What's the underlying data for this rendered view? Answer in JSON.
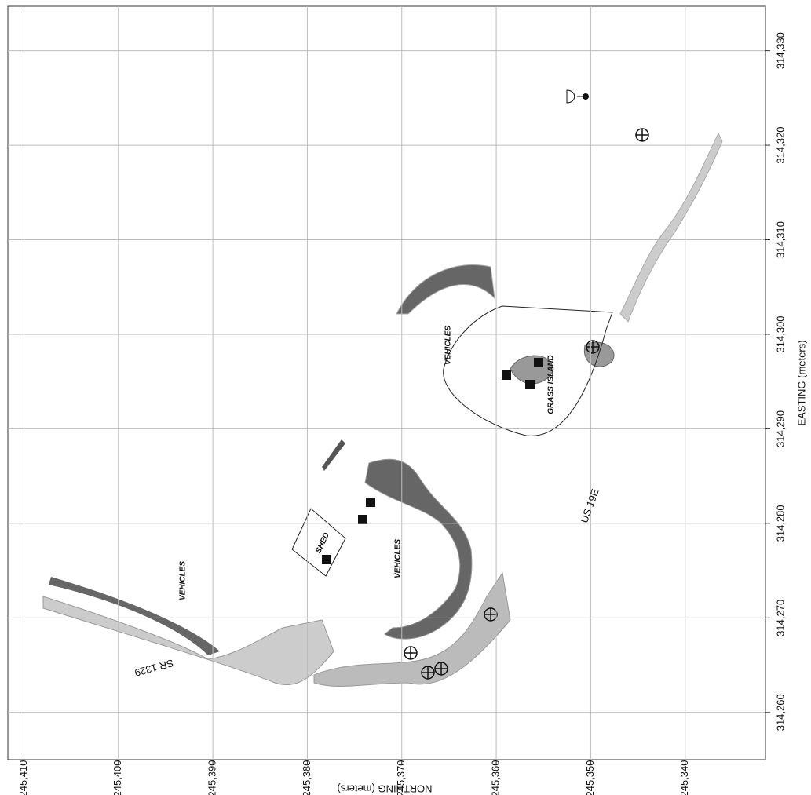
{
  "chart_data": {
    "type": "map",
    "xlabel": "NORTHING (meters)",
    "ylabel": "EASTING (meters)",
    "xlim": [
      245411.7,
      245331.5
    ],
    "ylim": [
      314255,
      314334.7
    ],
    "xticks": [
      {
        "value": 245410,
        "label": "245,410"
      },
      {
        "value": 245400,
        "label": "245,400"
      },
      {
        "value": 245390,
        "label": "245,390"
      },
      {
        "value": 245380,
        "label": "245,380"
      },
      {
        "value": 245370,
        "label": "245,370"
      },
      {
        "value": 245360,
        "label": "245,360"
      },
      {
        "value": 245350,
        "label": "245,350"
      },
      {
        "value": 245340,
        "label": "245,340"
      }
    ],
    "yticks": [
      {
        "value": 314260,
        "label": "314,260"
      },
      {
        "value": 314270,
        "label": "314,270"
      },
      {
        "value": 314280,
        "label": "314,280"
      },
      {
        "value": 314290,
        "label": "314,290"
      },
      {
        "value": 314300,
        "label": "314,300"
      },
      {
        "value": 314310,
        "label": "314,310"
      },
      {
        "value": 314320,
        "label": "314,320"
      },
      {
        "value": 314330,
        "label": "314,330"
      }
    ],
    "grid": true,
    "annotations": [
      "VEHICLES",
      "VEHICLES",
      "VEHICLES",
      "SHED",
      "GRASS ISLAND",
      "US 19E",
      "SR 1329"
    ]
  }
}
